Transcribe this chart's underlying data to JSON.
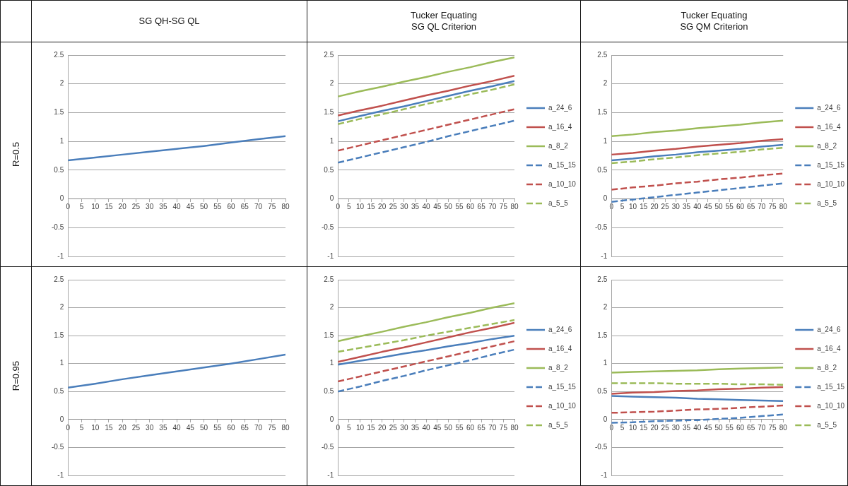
{
  "chart_data": [
    {
      "type": "line",
      "title": "SG QH-SG QL",
      "ylabel": "R=0.5",
      "x": [
        0,
        10,
        20,
        30,
        40,
        50,
        60,
        70,
        80
      ],
      "xlim": [
        0,
        80
      ],
      "xticks": [
        0,
        5,
        10,
        15,
        20,
        25,
        30,
        35,
        40,
        45,
        50,
        55,
        60,
        65,
        70,
        75,
        80
      ],
      "ylim": [
        -1,
        2.5
      ],
      "yticks": [
        -1,
        -0.5,
        0,
        0.5,
        1,
        1.5,
        2,
        2.5
      ],
      "grid": "y",
      "series": [
        {
          "color": "#4a7ebb",
          "values": [
            0.67,
            0.72,
            0.77,
            0.82,
            0.87,
            0.92,
            0.98,
            1.04,
            1.09
          ]
        }
      ]
    },
    {
      "type": "line",
      "title": "Tucker Equating\nSG QL Criterion",
      "x": [
        0,
        10,
        20,
        30,
        40,
        50,
        60,
        70,
        80
      ],
      "xlim": [
        0,
        80
      ],
      "xticks": [
        0,
        5,
        10,
        15,
        20,
        25,
        30,
        35,
        40,
        45,
        50,
        55,
        60,
        65,
        70,
        75,
        80
      ],
      "ylim": [
        -1,
        2.5
      ],
      "yticks": [
        -1,
        -0.5,
        0,
        0.5,
        1,
        1.5,
        2,
        2.5
      ],
      "grid": "y",
      "legend": "right",
      "series": [
        {
          "name": "a_24_6",
          "color": "#4a7ebb",
          "line_style": "solid",
          "values": [
            1.35,
            1.44,
            1.53,
            1.61,
            1.7,
            1.79,
            1.88,
            1.96,
            2.05
          ]
        },
        {
          "name": "a_16_4",
          "color": "#c0504d",
          "line_style": "solid",
          "values": [
            1.45,
            1.54,
            1.62,
            1.71,
            1.8,
            1.88,
            1.97,
            2.05,
            2.14
          ]
        },
        {
          "name": "a_8_2",
          "color": "#9bbb59",
          "line_style": "solid",
          "values": [
            1.78,
            1.87,
            1.95,
            2.04,
            2.12,
            2.21,
            2.29,
            2.38,
            2.46
          ]
        },
        {
          "name": "a_15_15",
          "color": "#4a7ebb",
          "line_style": "dashed",
          "values": [
            0.63,
            0.72,
            0.81,
            0.9,
            0.99,
            1.09,
            1.18,
            1.27,
            1.36
          ]
        },
        {
          "name": "a_10_10",
          "color": "#c0504d",
          "line_style": "dashed",
          "values": [
            0.84,
            0.93,
            1.02,
            1.11,
            1.2,
            1.29,
            1.38,
            1.47,
            1.56
          ]
        },
        {
          "name": "a_5_5",
          "color": "#9bbb59",
          "line_style": "dashed",
          "values": [
            1.3,
            1.39,
            1.47,
            1.56,
            1.65,
            1.73,
            1.82,
            1.9,
            1.99
          ]
        }
      ]
    },
    {
      "type": "line",
      "title": "Tucker Equating\nSG QM Criterion",
      "x": [
        0,
        10,
        20,
        30,
        40,
        50,
        60,
        70,
        80
      ],
      "xlim": [
        0,
        80
      ],
      "xticks": [
        0,
        5,
        10,
        15,
        20,
        25,
        30,
        35,
        40,
        45,
        50,
        55,
        60,
        65,
        70,
        75,
        80
      ],
      "ylim": [
        -1,
        2.5
      ],
      "yticks": [
        -1,
        -0.5,
        0,
        0.5,
        1,
        1.5,
        2,
        2.5
      ],
      "grid": "y",
      "legend": "right",
      "series": [
        {
          "name": "a_24_6",
          "color": "#4a7ebb",
          "line_style": "solid",
          "values": [
            0.67,
            0.7,
            0.74,
            0.77,
            0.81,
            0.84,
            0.87,
            0.91,
            0.94
          ]
        },
        {
          "name": "a_16_4",
          "color": "#c0504d",
          "line_style": "solid",
          "values": [
            0.77,
            0.8,
            0.84,
            0.87,
            0.91,
            0.94,
            0.97,
            1.01,
            1.04
          ]
        },
        {
          "name": "a_8_2",
          "color": "#9bbb59",
          "line_style": "solid",
          "values": [
            1.09,
            1.12,
            1.16,
            1.19,
            1.23,
            1.26,
            1.29,
            1.33,
            1.36
          ]
        },
        {
          "name": "a_15_15",
          "color": "#4a7ebb",
          "line_style": "dashed",
          "values": [
            -0.05,
            -0.01,
            0.03,
            0.07,
            0.11,
            0.15,
            0.19,
            0.23,
            0.27
          ]
        },
        {
          "name": "a_10_10",
          "color": "#c0504d",
          "line_style": "dashed",
          "values": [
            0.16,
            0.2,
            0.23,
            0.27,
            0.3,
            0.34,
            0.37,
            0.41,
            0.44
          ]
        },
        {
          "name": "a_5_5",
          "color": "#9bbb59",
          "line_style": "dashed",
          "values": [
            0.62,
            0.65,
            0.69,
            0.72,
            0.76,
            0.79,
            0.82,
            0.86,
            0.89
          ]
        }
      ]
    },
    {
      "type": "line",
      "ylabel": "R=0.95",
      "x": [
        0,
        10,
        20,
        30,
        40,
        50,
        60,
        70,
        80
      ],
      "xlim": [
        0,
        80
      ],
      "xticks": [
        0,
        5,
        10,
        15,
        20,
        25,
        30,
        35,
        40,
        45,
        50,
        55,
        60,
        65,
        70,
        75,
        80
      ],
      "ylim": [
        -1,
        2.5
      ],
      "yticks": [
        -1,
        -0.5,
        0,
        0.5,
        1,
        1.5,
        2,
        2.5
      ],
      "grid": "y",
      "series": [
        {
          "color": "#4a7ebb",
          "values": [
            0.57,
            0.64,
            0.72,
            0.79,
            0.86,
            0.93,
            1.0,
            1.08,
            1.16
          ]
        }
      ]
    },
    {
      "type": "line",
      "x": [
        0,
        10,
        20,
        30,
        40,
        50,
        60,
        70,
        80
      ],
      "xlim": [
        0,
        80
      ],
      "xticks": [
        0,
        5,
        10,
        15,
        20,
        25,
        30,
        35,
        40,
        45,
        50,
        55,
        60,
        65,
        70,
        75,
        80
      ],
      "ylim": [
        -1,
        2.5
      ],
      "yticks": [
        -1,
        -0.5,
        0,
        0.5,
        1,
        1.5,
        2,
        2.5
      ],
      "grid": "y",
      "legend": "right",
      "series": [
        {
          "name": "a_24_6",
          "color": "#4a7ebb",
          "line_style": "solid",
          "values": [
            0.98,
            1.05,
            1.11,
            1.18,
            1.24,
            1.31,
            1.37,
            1.44,
            1.5
          ]
        },
        {
          "name": "a_16_4",
          "color": "#c0504d",
          "line_style": "solid",
          "values": [
            1.03,
            1.12,
            1.21,
            1.29,
            1.38,
            1.47,
            1.56,
            1.64,
            1.73
          ]
        },
        {
          "name": "a_8_2",
          "color": "#9bbb59",
          "line_style": "solid",
          "values": [
            1.4,
            1.49,
            1.57,
            1.66,
            1.74,
            1.83,
            1.91,
            2.0,
            2.08
          ]
        },
        {
          "name": "a_15_15",
          "color": "#4a7ebb",
          "line_style": "dashed",
          "values": [
            0.5,
            0.59,
            0.69,
            0.78,
            0.88,
            0.97,
            1.06,
            1.16,
            1.25
          ]
        },
        {
          "name": "a_10_10",
          "color": "#c0504d",
          "line_style": "dashed",
          "values": [
            0.68,
            0.77,
            0.86,
            0.95,
            1.04,
            1.13,
            1.22,
            1.31,
            1.4
          ]
        },
        {
          "name": "a_5_5",
          "color": "#9bbb59",
          "line_style": "dashed",
          "values": [
            1.21,
            1.28,
            1.35,
            1.42,
            1.5,
            1.57,
            1.64,
            1.71,
            1.78
          ]
        }
      ]
    },
    {
      "type": "line",
      "x": [
        0,
        10,
        20,
        30,
        40,
        50,
        60,
        70,
        80
      ],
      "xlim": [
        0,
        80
      ],
      "xticks": [
        0,
        5,
        10,
        15,
        20,
        25,
        30,
        35,
        40,
        45,
        50,
        55,
        60,
        65,
        70,
        75,
        80
      ],
      "ylim": [
        -1,
        2.5
      ],
      "yticks": [
        -1,
        -0.5,
        0,
        0.5,
        1,
        1.5,
        2,
        2.5
      ],
      "grid": "y",
      "legend": "right",
      "series": [
        {
          "name": "a_24_6",
          "color": "#4a7ebb",
          "line_style": "solid",
          "values": [
            0.42,
            0.41,
            0.4,
            0.39,
            0.37,
            0.36,
            0.35,
            0.34,
            0.33
          ]
        },
        {
          "name": "a_16_4",
          "color": "#c0504d",
          "line_style": "solid",
          "values": [
            0.46,
            0.48,
            0.49,
            0.51,
            0.52,
            0.54,
            0.55,
            0.57,
            0.58
          ]
        },
        {
          "name": "a_8_2",
          "color": "#9bbb59",
          "line_style": "solid",
          "values": [
            0.84,
            0.85,
            0.86,
            0.87,
            0.88,
            0.9,
            0.91,
            0.92,
            0.93
          ]
        },
        {
          "name": "a_15_15",
          "color": "#4a7ebb",
          "line_style": "dashed",
          "values": [
            -0.06,
            -0.05,
            -0.03,
            -0.02,
            -0.01,
            0.01,
            0.03,
            0.06,
            0.09
          ]
        },
        {
          "name": "a_10_10",
          "color": "#c0504d",
          "line_style": "dashed",
          "values": [
            0.12,
            0.13,
            0.14,
            0.16,
            0.18,
            0.19,
            0.21,
            0.23,
            0.25
          ]
        },
        {
          "name": "a_5_5",
          "color": "#9bbb59",
          "line_style": "dashed",
          "values": [
            0.65,
            0.65,
            0.65,
            0.64,
            0.64,
            0.64,
            0.63,
            0.63,
            0.62
          ]
        }
      ]
    }
  ]
}
